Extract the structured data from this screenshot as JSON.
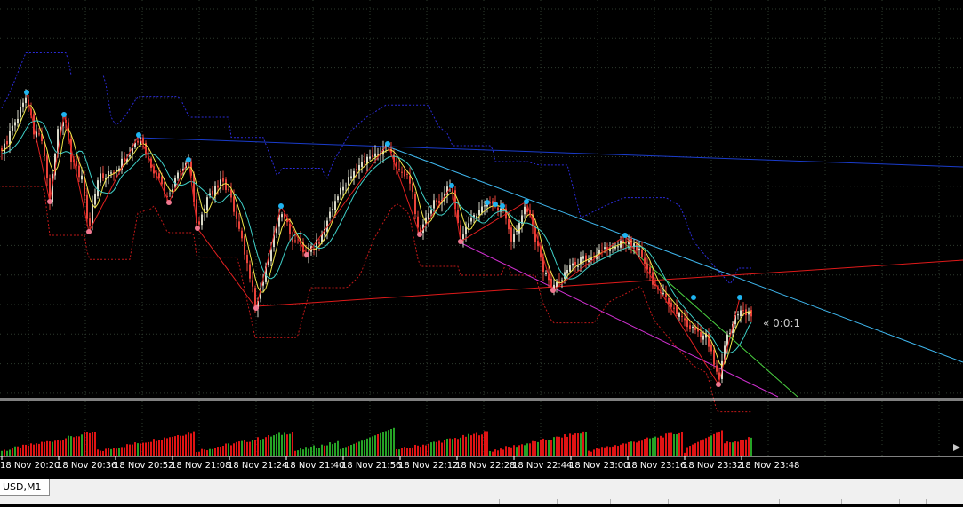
{
  "window": {
    "tab_label": "USD,M1",
    "position_label": "« 0:0:1"
  },
  "time_axis": {
    "labels": [
      "18 Nov 20:20",
      "18 Nov 20:36",
      "18 Nov 20:52",
      "18 Nov 21:08",
      "18 Nov 21:24",
      "18 Nov 21:40",
      "18 Nov 21:56",
      "18 Nov 22:12",
      "18 Nov 22:28",
      "18 Nov 22:44",
      "18 Nov 23:00",
      "18 Nov 23:16",
      "18 Nov 23:32",
      "18 Nov 23:48"
    ]
  },
  "colors": {
    "background": "#000000",
    "grid": "#2e3b2e",
    "bull_candle": "#d9d9c8",
    "bear_candle": "#e8433a",
    "volume_up": "#26a326",
    "volume_down": "#e01414",
    "swing_high_marker": "#1eb4f0",
    "swing_low_marker": "#f07890",
    "zigzag": "#e02020",
    "ma_fast": "#f2e94a",
    "ma_mid": "#3fd0c8",
    "envelope_upper": "#2b2bd8",
    "envelope_lower": "#c01818",
    "trend_blue": "#1a3ccc",
    "trend_cyan": "#3fb8f0",
    "trend_red": "#e01a1a",
    "trend_magenta": "#d030d0",
    "trend_green": "#4ad040"
  },
  "icons": [
    "period-separator-arrow-icon"
  ]
}
